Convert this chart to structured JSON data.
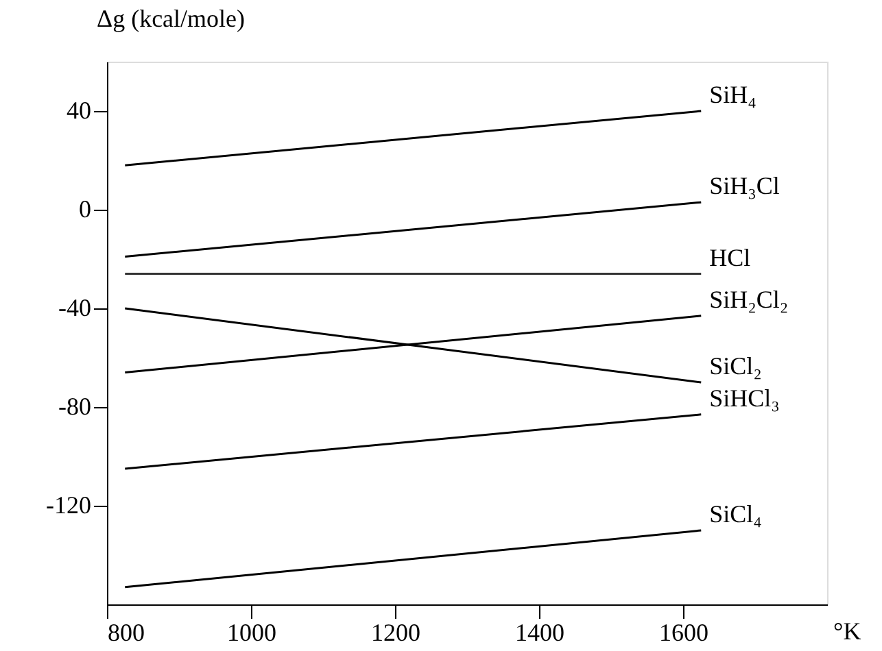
{
  "chart_data": {
    "type": "line",
    "xlabel": "°K",
    "ylabel": "Δg (kcal/mole)",
    "xlim": [
      800,
      1800
    ],
    "xticks": [
      800,
      1000,
      1200,
      1400,
      1600
    ],
    "ylim": [
      -160,
      60
    ],
    "yticks": [
      -120,
      -80,
      -40,
      0,
      40
    ],
    "grid": false,
    "line_style": "solid",
    "x": [
      825,
      1625
    ],
    "series": [
      {
        "name": "SiH₄",
        "color": "#000000",
        "values": [
          18,
          40
        ]
      },
      {
        "name": "SiH₃Cl",
        "color": "#000000",
        "values": [
          -19,
          3
        ]
      },
      {
        "name": "HCl",
        "color": "#333333",
        "values": [
          -26,
          -26
        ]
      },
      {
        "name": "SiH₂Cl₂",
        "color": "#000000",
        "values": [
          -66,
          -43
        ]
      },
      {
        "name": "SiCl₂",
        "color": "#000000",
        "values": [
          -40,
          -70
        ]
      },
      {
        "name": "SiHCl₃",
        "color": "#000000",
        "values": [
          -105,
          -83
        ]
      },
      {
        "name": "SiCl₄",
        "color": "#000000",
        "values": [
          -153,
          -130
        ]
      }
    ]
  }
}
